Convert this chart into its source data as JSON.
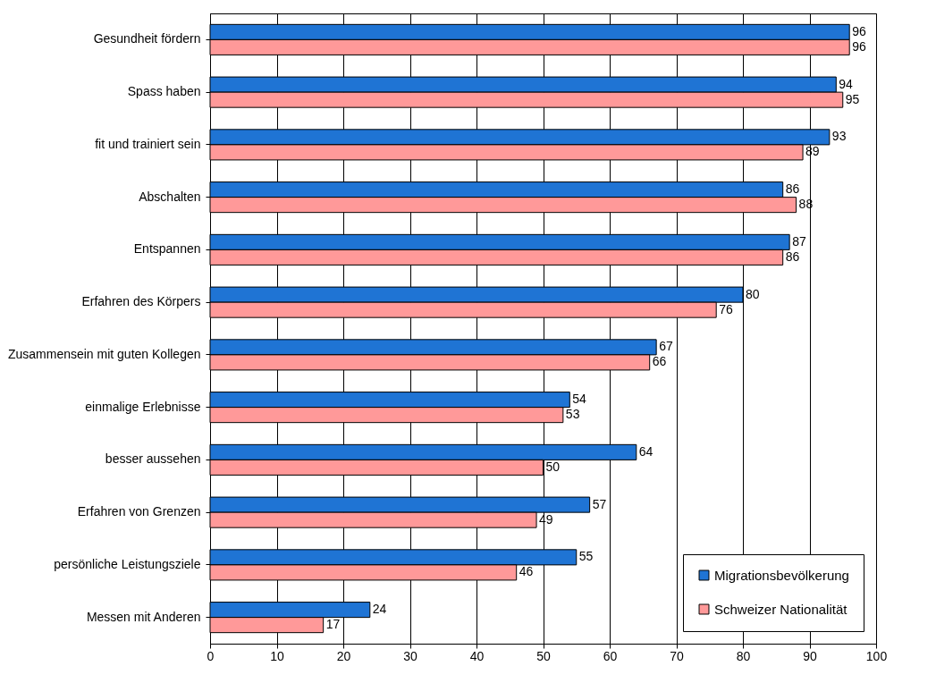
{
  "chart_data": {
    "type": "bar",
    "orientation": "horizontal",
    "categories": [
      "Gesundheit fördern",
      "Spass haben",
      "fit und trainiert sein",
      "Abschalten",
      "Entspannen",
      "Erfahren des Körpers",
      "Zusammensein mit guten Kollegen",
      "einmalige Erlebnisse",
      "besser aussehen",
      "Erfahren von Grenzen",
      "persönliche Leistungsziele",
      "Messen mit Anderen"
    ],
    "series": [
      {
        "name": "Migrationsbevölkerung",
        "color": "#1f74d4",
        "values": [
          96,
          94,
          93,
          86,
          87,
          80,
          67,
          54,
          64,
          57,
          55,
          24
        ]
      },
      {
        "name": "Schweizer Nationalität",
        "color": "#ff9999",
        "values": [
          96,
          95,
          89,
          88,
          86,
          76,
          66,
          53,
          50,
          49,
          46,
          17
        ]
      }
    ],
    "xlim": [
      0,
      100
    ],
    "xticks": [
      0,
      10,
      20,
      30,
      40,
      50,
      60,
      70,
      80,
      90,
      100
    ],
    "grid": "x",
    "legend": "bottom right",
    "data_labels": true
  }
}
